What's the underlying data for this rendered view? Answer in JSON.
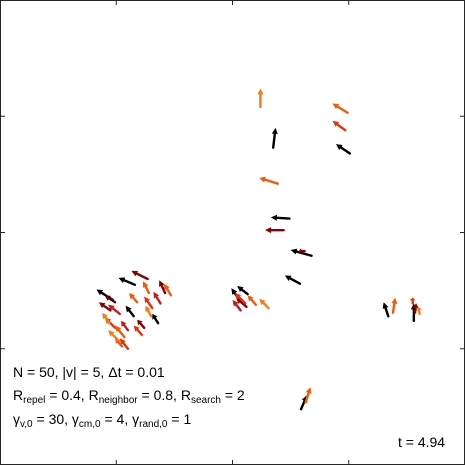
{
  "annotation": {
    "line1": "N = 50, |v| = 5, Δt = 0.01",
    "line2": {
      "r1": "R",
      "r1_sub": "repel",
      "r1_val": " = 0.4, ",
      "r2": "R",
      "r2_sub": "neighbor",
      "r2_val": " = 0.8, ",
      "r3": "R",
      "r3_sub": "search",
      "r3_val": " = 2"
    },
    "line3": {
      "g1": "γ",
      "g1_sub": "v,0",
      "g1_val": " = 30, ",
      "g2": "γ",
      "g2_sub": "cm,0",
      "g2_val": " = 4, ",
      "g3": "γ",
      "g3_sub": "rand,0",
      "g3_val": " = 1"
    },
    "time_label": "t = 4.94"
  },
  "chart_data": {
    "type": "quiver",
    "title": "",
    "xlabel": "",
    "ylabel": "",
    "xlim": [
      0,
      4
    ],
    "ylim": [
      0,
      4
    ],
    "grid": false,
    "box": true,
    "x_ticks": [
      1,
      2,
      3
    ],
    "y_ticks": [
      1,
      2,
      3
    ],
    "colors": [
      "#000000",
      "#5a0000",
      "#8b0000",
      "#c41a1a",
      "#e8320c",
      "#f25a0a",
      "#ff7a12"
    ],
    "agents": [
      {
        "x": 2.24,
        "y": 3.08,
        "dx": 0.0,
        "dy": 0.16,
        "c": 6
      },
      {
        "x": 2.35,
        "y": 2.73,
        "dx": 0.02,
        "dy": 0.17,
        "c": 0
      },
      {
        "x": 2.97,
        "y": 2.88,
        "dx": -0.11,
        "dy": 0.08,
        "c": 4
      },
      {
        "x": 2.99,
        "y": 3.03,
        "dx": -0.13,
        "dy": 0.08,
        "c": 5
      },
      {
        "x": 3.01,
        "y": 2.68,
        "dx": -0.12,
        "dy": 0.08,
        "c": 0
      },
      {
        "x": 2.39,
        "y": 2.42,
        "dx": -0.16,
        "dy": 0.05,
        "c": 5
      },
      {
        "x": 2.49,
        "y": 2.12,
        "dx": -0.16,
        "dy": 0.01,
        "c": 0
      },
      {
        "x": 2.44,
        "y": 2.02,
        "dx": -0.16,
        "dy": 0.0,
        "c": 2
      },
      {
        "x": 2.68,
        "y": 1.8,
        "dx": -0.18,
        "dy": 0.05,
        "c": 0
      },
      {
        "x": 2.62,
        "y": 1.84,
        "dx": 0.0,
        "dy": 0.0,
        "c": 2
      },
      {
        "x": 2.58,
        "y": 1.56,
        "dx": -0.13,
        "dy": 0.07,
        "c": 0
      },
      {
        "x": 1.27,
        "y": 1.6,
        "dx": -0.14,
        "dy": 0.07,
        "c": 2
      },
      {
        "x": 1.16,
        "y": 1.55,
        "dx": -0.14,
        "dy": 0.06,
        "c": 0
      },
      {
        "x": 0.97,
        "y": 1.42,
        "dx": -0.14,
        "dy": 0.09,
        "c": 0
      },
      {
        "x": 0.95,
        "y": 1.33,
        "dx": -0.1,
        "dy": 0.07,
        "c": 2
      },
      {
        "x": 1.03,
        "y": 1.3,
        "dx": -0.1,
        "dy": 0.08,
        "c": 3
      },
      {
        "x": 0.99,
        "y": 1.18,
        "dx": -0.09,
        "dy": 0.09,
        "c": 4
      },
      {
        "x": 1.07,
        "y": 1.1,
        "dx": -0.08,
        "dy": 0.1,
        "c": 5
      },
      {
        "x": 0.94,
        "y": 1.22,
        "dx": -0.06,
        "dy": 0.09,
        "c": 6
      },
      {
        "x": 1.1,
        "y": 1.16,
        "dx": -0.06,
        "dy": 0.08,
        "c": 3
      },
      {
        "x": 1.1,
        "y": 1.0,
        "dx": -0.07,
        "dy": 0.09,
        "c": 4
      },
      {
        "x": 1.05,
        "y": 1.02,
        "dx": -0.06,
        "dy": 0.07,
        "c": 5
      },
      {
        "x": 1.01,
        "y": 1.08,
        "dx": -0.08,
        "dy": 0.08,
        "c": 6
      },
      {
        "x": 1.15,
        "y": 1.28,
        "dx": -0.07,
        "dy": 0.09,
        "c": 0
      },
      {
        "x": 1.24,
        "y": 1.18,
        "dx": -0.06,
        "dy": 0.07,
        "c": 2
      },
      {
        "x": 1.22,
        "y": 1.12,
        "dx": -0.07,
        "dy": 0.08,
        "c": 4
      },
      {
        "x": 1.31,
        "y": 1.35,
        "dx": -0.07,
        "dy": 0.1,
        "c": 4
      },
      {
        "x": 1.3,
        "y": 1.28,
        "dx": -0.05,
        "dy": 0.09,
        "c": 6
      },
      {
        "x": 1.38,
        "y": 1.39,
        "dx": -0.06,
        "dy": 0.1,
        "c": 3
      },
      {
        "x": 1.28,
        "y": 1.48,
        "dx": -0.05,
        "dy": 0.1,
        "c": 5
      },
      {
        "x": 1.42,
        "y": 1.48,
        "dx": -0.05,
        "dy": 0.11,
        "c": 2
      },
      {
        "x": 1.47,
        "y": 1.46,
        "dx": -0.06,
        "dy": 0.1,
        "c": 5
      },
      {
        "x": 1.36,
        "y": 1.22,
        "dx": -0.05,
        "dy": 0.08,
        "c": 0
      },
      {
        "x": 1.18,
        "y": 1.4,
        "dx": -0.07,
        "dy": 0.08,
        "c": 5
      },
      {
        "x": 2.06,
        "y": 1.42,
        "dx": -0.07,
        "dy": 0.1,
        "c": 0
      },
      {
        "x": 2.12,
        "y": 1.36,
        "dx": -0.09,
        "dy": 0.08,
        "c": 2
      },
      {
        "x": 2.11,
        "y": 1.39,
        "dx": -0.09,
        "dy": 0.09,
        "c": 4
      },
      {
        "x": 2.2,
        "y": 1.38,
        "dx": -0.07,
        "dy": 0.08,
        "c": 5
      },
      {
        "x": 2.31,
        "y": 1.35,
        "dx": -0.08,
        "dy": 0.08,
        "c": 6
      },
      {
        "x": 2.13,
        "y": 1.47,
        "dx": -0.09,
        "dy": 0.07,
        "c": 0
      },
      {
        "x": 2.07,
        "y": 1.33,
        "dx": -0.07,
        "dy": 0.09,
        "c": 3
      },
      {
        "x": 3.34,
        "y": 1.28,
        "dx": -0.04,
        "dy": 0.12,
        "c": 0
      },
      {
        "x": 3.38,
        "y": 1.31,
        "dx": 0.02,
        "dy": 0.13,
        "c": 5
      },
      {
        "x": 3.56,
        "y": 1.24,
        "dx": 0.0,
        "dy": 0.15,
        "c": 0
      },
      {
        "x": 3.55,
        "y": 1.39,
        "dx": 0.0,
        "dy": 0.05,
        "c": 4
      },
      {
        "x": 3.57,
        "y": 1.31,
        "dx": 0.01,
        "dy": 0.08,
        "c": 2
      },
      {
        "x": 2.59,
        "y": 0.48,
        "dx": 0.05,
        "dy": 0.12,
        "c": 0
      },
      {
        "x": 2.63,
        "y": 0.54,
        "dx": 0.04,
        "dy": 0.13,
        "c": 5
      },
      {
        "x": 3.61,
        "y": 1.3,
        "dx": -0.01,
        "dy": 0.06,
        "c": 6
      },
      {
        "x": 0.99,
        "y": 1.4,
        "dx": -0.09,
        "dy": 0.06,
        "c": 1
      }
    ]
  }
}
